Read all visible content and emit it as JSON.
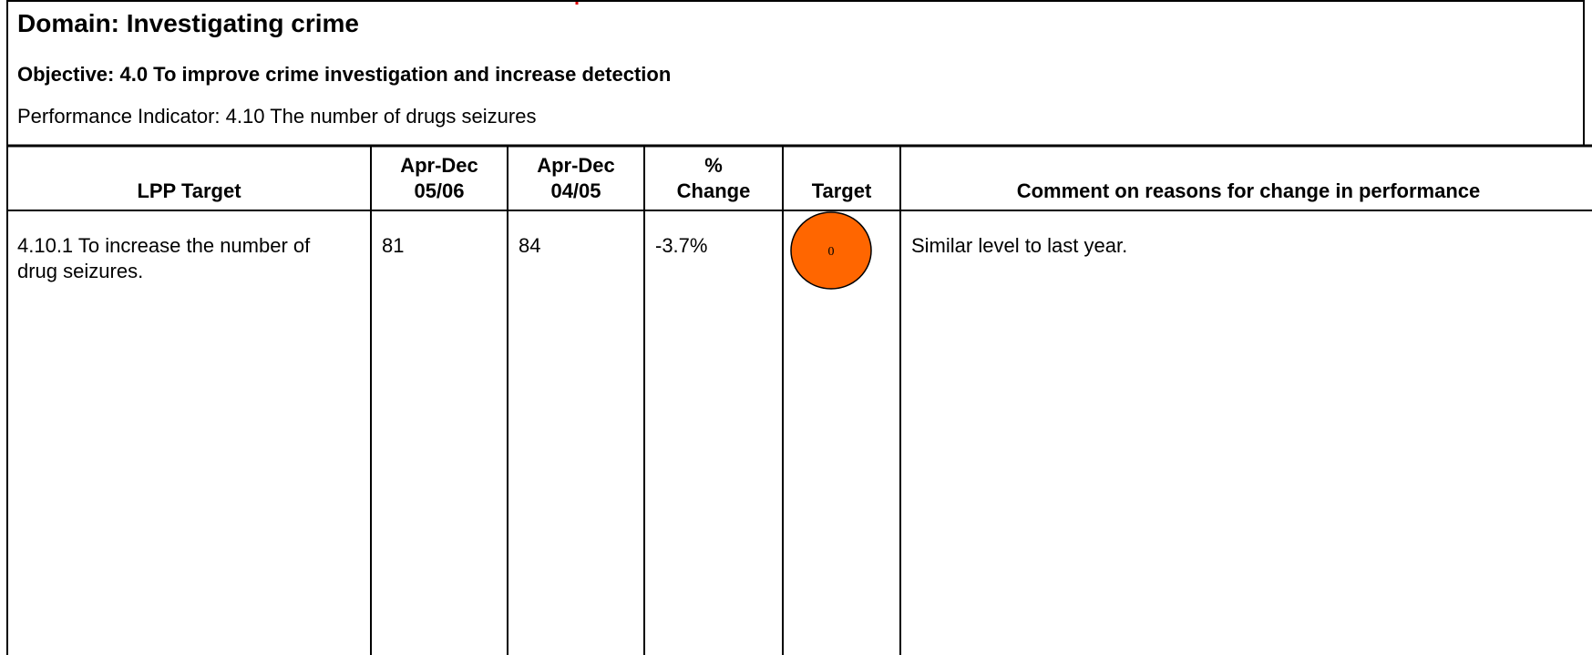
{
  "header": {
    "domain": "Domain: Investigating crime",
    "objective": "Objective: 4.0 To improve crime investigation and increase detection",
    "indicator": "Performance Indicator: 4.10 The number of drugs seizures"
  },
  "table": {
    "columns": [
      "LPP Target",
      "Apr-Dec\n05/06",
      "Apr-Dec\n04/05",
      "%\nChange",
      "Target",
      "Comment on reasons for change in performance"
    ],
    "rows": [
      [
        "4.10.1 To increase the number of drug seizures.",
        "81",
        "84",
        "-3.7%",
        "0",
        "Similar level to last year."
      ]
    ]
  }
}
